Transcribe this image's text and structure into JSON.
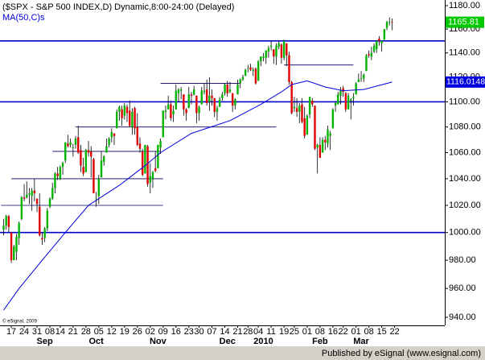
{
  "chart_data": {
    "type": "candlestick",
    "title": "($SPX - S&P 500 INDEX,D) Dynamic,8:00-24:00 (Delayed)",
    "indicator": "MA(50,C)s",
    "copyright": "© eSignal, 2009",
    "footer": "Published by eSignal (www.esignal.com)",
    "log_scale": true,
    "up_color": "#00b400",
    "down_color": "#e00000",
    "ma_color": "#0000e0",
    "level_color": "#0000c8",
    "ylim": [
      940,
      1180
    ],
    "yticks": [
      {
        "value": 940,
        "label": "940.00"
      },
      {
        "value": 960,
        "label": "960.00"
      },
      {
        "value": 980,
        "label": "980.00"
      },
      {
        "value": 1000,
        "label": "1000.00"
      },
      {
        "value": 1020,
        "label": "1020.00"
      },
      {
        "value": 1040,
        "label": "1040.00"
      },
      {
        "value": 1060,
        "label": "1060.00"
      },
      {
        "value": 1080,
        "label": "1080.00"
      },
      {
        "value": 1100,
        "label": "1100.00"
      },
      {
        "value": 1120,
        "label": "1120.00"
      },
      {
        "value": 1140,
        "label": "1140.00"
      },
      {
        "value": 1160,
        "label": "1160.00"
      },
      {
        "value": 1180,
        "label": "1180.00"
      }
    ],
    "xlim": [
      -1.4,
      171.5
    ],
    "xticks": [
      {
        "value": 3,
        "label": "17"
      },
      {
        "value": 8,
        "label": "24"
      },
      {
        "value": 13,
        "label": "31"
      },
      {
        "value": 18,
        "label": "08"
      },
      {
        "value": 22,
        "label": "14"
      },
      {
        "value": 27,
        "label": "21"
      },
      {
        "value": 32,
        "label": "28"
      },
      {
        "value": 37,
        "label": "05"
      },
      {
        "value": 42,
        "label": "12"
      },
      {
        "value": 47,
        "label": "19"
      },
      {
        "value": 52,
        "label": "26"
      },
      {
        "value": 57,
        "label": "02"
      },
      {
        "value": 62,
        "label": "09"
      },
      {
        "value": 67,
        "label": "16"
      },
      {
        "value": 72,
        "label": "23"
      },
      {
        "value": 76,
        "label": "30"
      },
      {
        "value": 81,
        "label": "07"
      },
      {
        "value": 86,
        "label": "14"
      },
      {
        "value": 91,
        "label": "21"
      },
      {
        "value": 95,
        "label": "28"
      },
      {
        "value": 99,
        "label": "04"
      },
      {
        "value": 104,
        "label": "11"
      },
      {
        "value": 109,
        "label": "19"
      },
      {
        "value": 113,
        "label": "25"
      },
      {
        "value": 118,
        "label": "01"
      },
      {
        "value": 123,
        "label": "08"
      },
      {
        "value": 128,
        "label": "16"
      },
      {
        "value": 132,
        "label": "22"
      },
      {
        "value": 137,
        "label": "01"
      },
      {
        "value": 142,
        "label": "08"
      },
      {
        "value": 147,
        "label": "15"
      },
      {
        "value": 152,
        "label": "22"
      }
    ],
    "month_ticks": [
      {
        "value": 16,
        "label": "Sep"
      },
      {
        "value": 36,
        "label": "Oct"
      },
      {
        "value": 60,
        "label": "Nov"
      },
      {
        "value": 87,
        "label": "Dec"
      },
      {
        "value": 101,
        "label": "2010"
      },
      {
        "value": 123,
        "label": "Feb"
      },
      {
        "value": 139,
        "label": "Mar"
      }
    ],
    "levels": [
      {
        "value": 1150,
        "width": "full"
      },
      {
        "value": 1100,
        "width": "full"
      },
      {
        "value": 1000,
        "width": "full"
      },
      {
        "value": 1130,
        "from": 109,
        "to": 136
      },
      {
        "value": 1115,
        "from": 61,
        "to": 92
      },
      {
        "value": 1080,
        "from": 28,
        "to": 106
      },
      {
        "value": 1061,
        "from": 19,
        "to": 61
      },
      {
        "value": 1040,
        "from": 3,
        "to": 62
      },
      {
        "value": 1020,
        "from": -1,
        "to": 62
      }
    ],
    "ma": {
      "x": [
        0,
        6,
        15,
        24,
        33,
        45,
        55,
        61,
        73,
        88,
        100,
        108,
        112,
        118,
        125,
        132,
        140,
        151
      ],
      "values": [
        945,
        960,
        980,
        1000,
        1020,
        1035,
        1050,
        1060,
        1075,
        1085,
        1098,
        1108,
        1114,
        1117,
        1112,
        1109,
        1110,
        1116.0148
      ]
    },
    "ohlc": [
      [
        1002,
        1010,
        998,
        1005
      ],
      [
        1005,
        1013,
        1002,
        1012
      ],
      [
        1012,
        1013,
        1000,
        1004
      ],
      [
        1000,
        1000,
        978,
        980
      ],
      [
        980,
        991,
        980,
        990
      ],
      [
        986,
        999,
        980,
        997
      ],
      [
        996,
        1008,
        991,
        1007
      ],
      [
        1010,
        1027,
        1009,
        1026
      ],
      [
        1026,
        1036,
        1023,
        1025
      ],
      [
        1026,
        1038,
        1025,
        1028
      ],
      [
        1028,
        1033,
        1021,
        1029
      ],
      [
        1027,
        1033,
        1016,
        1031
      ],
      [
        1031,
        1040,
        1023,
        1029
      ],
      [
        1025,
        1025,
        1015,
        1021
      ],
      [
        1019,
        1029,
        997,
        998
      ],
      [
        996,
        1000,
        991,
        995
      ],
      [
        996,
        1004,
        993,
        1003
      ],
      [
        1003,
        1018,
        1001,
        1016
      ],
      [
        1019,
        1026,
        1018,
        1025
      ],
      [
        1025,
        1037,
        1024,
        1033
      ],
      [
        1033,
        1045,
        1029,
        1044
      ],
      [
        1044,
        1049,
        1039,
        1042
      ],
      [
        1040,
        1050,
        1039,
        1049
      ],
      [
        1049,
        1053,
        1043,
        1052
      ],
      [
        1054,
        1068,
        1052,
        1068
      ],
      [
        1067,
        1074,
        1064,
        1065
      ],
      [
        1066,
        1071,
        1064,
        1068
      ],
      [
        1064,
        1067,
        1057,
        1064
      ],
      [
        1066,
        1073,
        1063,
        1071
      ],
      [
        1072,
        1081,
        1059,
        1060
      ],
      [
        1062,
        1066,
        1045,
        1050
      ],
      [
        1049,
        1056,
        1042,
        1044
      ],
      [
        1045,
        1063,
        1045,
        1062
      ],
      [
        1062,
        1069,
        1057,
        1060
      ],
      [
        1061,
        1065,
        1041,
        1057
      ],
      [
        1055,
        1056,
        1029,
        1029
      ],
      [
        1025,
        1030,
        1019,
        1025
      ],
      [
        1027,
        1043,
        1021,
        1040
      ],
      [
        1041,
        1061,
        1041,
        1054
      ],
      [
        1053,
        1058,
        1050,
        1057
      ],
      [
        1060,
        1071,
        1060,
        1065
      ],
      [
        1066,
        1072,
        1064,
        1071
      ],
      [
        1072,
        1079,
        1068,
        1076
      ],
      [
        1075,
        1075,
        1066,
        1073
      ],
      [
        1079,
        1094,
        1079,
        1092
      ],
      [
        1092,
        1097,
        1085,
        1096
      ],
      [
        1094,
        1097,
        1081,
        1087
      ],
      [
        1089,
        1099,
        1086,
        1097
      ],
      [
        1096,
        1098,
        1084,
        1091
      ],
      [
        1093,
        1101,
        1080,
        1081
      ],
      [
        1080,
        1095,
        1074,
        1092
      ],
      [
        1095,
        1096,
        1074,
        1079
      ],
      [
        1080,
        1091,
        1065,
        1066
      ],
      [
        1067,
        1072,
        1060,
        1063
      ],
      [
        1061,
        1063,
        1042,
        1043
      ],
      [
        1044,
        1066,
        1044,
        1066
      ],
      [
        1065,
        1066,
        1034,
        1036
      ],
      [
        1037,
        1052,
        1029,
        1042
      ],
      [
        1040,
        1046,
        1033,
        1045
      ],
      [
        1048,
        1061,
        1045,
        1046
      ],
      [
        1048,
        1066,
        1048,
        1066
      ],
      [
        1064,
        1071,
        1059,
        1069
      ],
      [
        1072,
        1093,
        1072,
        1093
      ],
      [
        1092,
        1097,
        1086,
        1093
      ],
      [
        1094,
        1105,
        1094,
        1098
      ],
      [
        1098,
        1101,
        1085,
        1087
      ],
      [
        1090,
        1097,
        1084,
        1093
      ],
      [
        1094,
        1114,
        1094,
        1109
      ],
      [
        1107,
        1111,
        1100,
        1110
      ],
      [
        1109,
        1112,
        1102,
        1110
      ],
      [
        1106,
        1106,
        1089,
        1094
      ],
      [
        1094,
        1095,
        1085,
        1091
      ],
      [
        1095,
        1112,
        1095,
        1106
      ],
      [
        1106,
        1108,
        1098,
        1105
      ],
      [
        1106,
        1113,
        1105,
        1110
      ],
      [
        1105,
        1105,
        1083,
        1091
      ],
      [
        1091,
        1097,
        1085,
        1096
      ],
      [
        1098,
        1112,
        1098,
        1109
      ],
      [
        1108,
        1115,
        1106,
        1109
      ],
      [
        1110,
        1118,
        1097,
        1099
      ],
      [
        1100,
        1120,
        1093,
        1105
      ],
      [
        1105,
        1110,
        1097,
        1103
      ],
      [
        1103,
        1103,
        1088,
        1092
      ],
      [
        1092,
        1097,
        1085,
        1095
      ],
      [
        1096,
        1104,
        1096,
        1102
      ],
      [
        1103,
        1108,
        1101,
        1106
      ],
      [
        1107,
        1115,
        1105,
        1114
      ],
      [
        1114,
        1117,
        1104,
        1107
      ],
      [
        1108,
        1116,
        1107,
        1110
      ],
      [
        1107,
        1107,
        1092,
        1097
      ],
      [
        1097,
        1103,
        1094,
        1102
      ],
      [
        1106,
        1118,
        1106,
        1114
      ],
      [
        1115,
        1119,
        1111,
        1118
      ],
      [
        1118,
        1122,
        1117,
        1120
      ],
      [
        1121,
        1127,
        1121,
        1126
      ],
      [
        1128,
        1130,
        1124,
        1128
      ],
      [
        1128,
        1131,
        1125,
        1126
      ],
      [
        1125,
        1128,
        1121,
        1126
      ],
      [
        1127,
        1128,
        1114,
        1115
      ],
      [
        1117,
        1134,
        1117,
        1133
      ],
      [
        1133,
        1137,
        1129,
        1137
      ],
      [
        1136,
        1140,
        1133,
        1137
      ],
      [
        1136,
        1142,
        1131,
        1142
      ],
      [
        1141,
        1146,
        1136,
        1144
      ],
      [
        1145,
        1150,
        1142,
        1146
      ],
      [
        1143,
        1143,
        1131,
        1137
      ],
      [
        1137,
        1148,
        1130,
        1146
      ],
      [
        1145,
        1150,
        1143,
        1148
      ],
      [
        1147,
        1148,
        1131,
        1136
      ],
      [
        1136,
        1151,
        1134,
        1150
      ],
      [
        1148,
        1148,
        1129,
        1138
      ],
      [
        1138,
        1141,
        1114,
        1116
      ],
      [
        1116,
        1117,
        1090,
        1091
      ],
      [
        1095,
        1104,
        1092,
        1096
      ],
      [
        1095,
        1103,
        1088,
        1092
      ],
      [
        1092,
        1099,
        1083,
        1097
      ],
      [
        1098,
        1103,
        1083,
        1084
      ],
      [
        1087,
        1096,
        1071,
        1073
      ],
      [
        1074,
        1090,
        1074,
        1089
      ],
      [
        1090,
        1104,
        1087,
        1104
      ],
      [
        1101,
        1103,
        1096,
        1098
      ],
      [
        1097,
        1097,
        1062,
        1063
      ],
      [
        1064,
        1067,
        1044,
        1066
      ],
      [
        1066,
        1072,
        1056,
        1056
      ],
      [
        1060,
        1072,
        1060,
        1070
      ],
      [
        1070,
        1073,
        1062,
        1068
      ],
      [
        1067,
        1081,
        1064,
        1078
      ],
      [
        1073,
        1077,
        1062,
        1075
      ],
      [
        1079,
        1095,
        1079,
        1094
      ],
      [
        1097,
        1100,
        1092,
        1099
      ],
      [
        1098,
        1108,
        1098,
        1106
      ],
      [
        1105,
        1112,
        1098,
        1109
      ],
      [
        1111,
        1113,
        1104,
        1108
      ],
      [
        1107,
        1108,
        1092,
        1094
      ],
      [
        1094,
        1107,
        1094,
        1105
      ],
      [
        1101,
        1103,
        1086,
        1102
      ],
      [
        1103,
        1107,
        1097,
        1104
      ],
      [
        1106,
        1116,
        1106,
        1115
      ],
      [
        1116,
        1123,
        1116,
        1118
      ],
      [
        1119,
        1125,
        1116,
        1119
      ],
      [
        1119,
        1123,
        1116,
        1122
      ],
      [
        1125,
        1139,
        1125,
        1138
      ],
      [
        1139,
        1142,
        1136,
        1138
      ],
      [
        1137,
        1145,
        1134,
        1140
      ],
      [
        1141,
        1148,
        1140,
        1146
      ],
      [
        1143,
        1150,
        1140,
        1150
      ],
      [
        1152,
        1154,
        1146,
        1150
      ],
      [
        1148,
        1150,
        1141,
        1150
      ],
      [
        1151,
        1160,
        1151,
        1160
      ],
      [
        1161,
        1167,
        1159,
        1166
      ],
      [
        1166,
        1170,
        1163,
        1166
      ],
      [
        1166,
        1169,
        1159,
        1165.81
      ]
    ]
  }
}
